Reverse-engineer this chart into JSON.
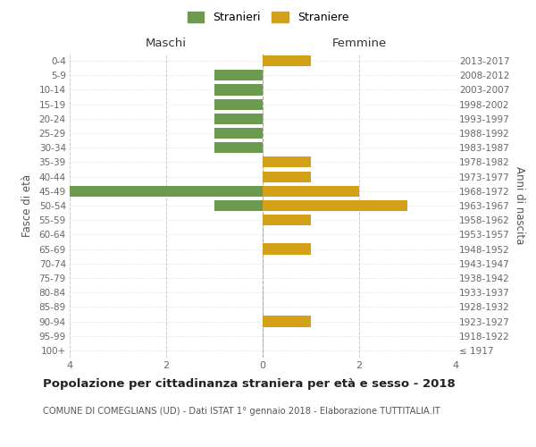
{
  "age_groups": [
    "100+",
    "95-99",
    "90-94",
    "85-89",
    "80-84",
    "75-79",
    "70-74",
    "65-69",
    "60-64",
    "55-59",
    "50-54",
    "45-49",
    "40-44",
    "35-39",
    "30-34",
    "25-29",
    "20-24",
    "15-19",
    "10-14",
    "5-9",
    "0-4"
  ],
  "birth_years": [
    "≤ 1917",
    "1918-1922",
    "1923-1927",
    "1928-1932",
    "1933-1937",
    "1938-1942",
    "1943-1947",
    "1948-1952",
    "1953-1957",
    "1958-1962",
    "1963-1967",
    "1968-1972",
    "1973-1977",
    "1978-1982",
    "1983-1987",
    "1988-1992",
    "1993-1997",
    "1998-2002",
    "2003-2007",
    "2008-2012",
    "2013-2017"
  ],
  "males": [
    0,
    0,
    0,
    0,
    0,
    0,
    0,
    0,
    0,
    0,
    1,
    4,
    0,
    0,
    1,
    1,
    1,
    1,
    1,
    1,
    0
  ],
  "females": [
    0,
    0,
    1,
    0,
    0,
    0,
    0,
    1,
    0,
    1,
    3,
    2,
    1,
    1,
    0,
    0,
    0,
    0,
    0,
    0,
    1
  ],
  "male_color": "#6d9b4e",
  "female_color": "#d4a017",
  "xlim": 4,
  "title": "Popolazione per cittadinanza straniera per età e sesso - 2018",
  "subtitle": "COMUNE DI COMEGLIANS (UD) - Dati ISTAT 1° gennaio 2018 - Elaborazione TUTTITALIA.IT",
  "ylabel_left": "Fasce di età",
  "ylabel_right": "Anni di nascita",
  "legend_stranieri": "Stranieri",
  "legend_straniere": "Straniere",
  "maschi_label": "Maschi",
  "femmine_label": "Femmine",
  "bg_color": "#ffffff",
  "grid_color": "#cccccc",
  "bar_height": 0.75
}
